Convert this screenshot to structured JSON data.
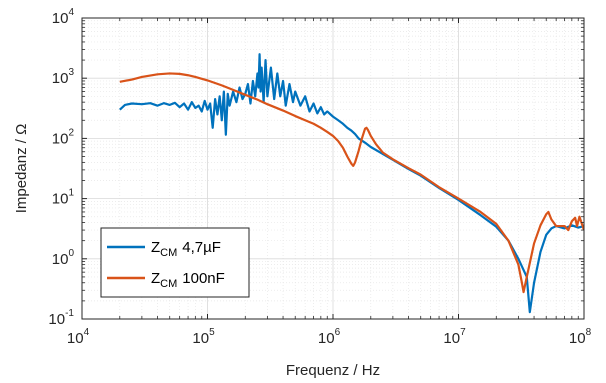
{
  "chart_data": {
    "type": "line",
    "title": "",
    "xlabel": "Frequenz / Hz",
    "ylabel": "Impedanz / Ω",
    "xscale": "log",
    "yscale": "log",
    "xlim": [
      10000,
      100000000
    ],
    "ylim": [
      0.1,
      10000
    ],
    "grid": "on (major + minor)",
    "legend_position": "bottom-left",
    "x_ticks": [
      {
        "base": "10",
        "exp": "4"
      },
      {
        "base": "10",
        "exp": "5"
      },
      {
        "base": "10",
        "exp": "6"
      },
      {
        "base": "10",
        "exp": "7"
      },
      {
        "base": "10",
        "exp": "8"
      }
    ],
    "y_ticks": [
      {
        "base": "10",
        "exp": "-1"
      },
      {
        "base": "10",
        "exp": "0"
      },
      {
        "base": "10",
        "exp": "1"
      },
      {
        "base": "10",
        "exp": "2"
      },
      {
        "base": "10",
        "exp": "3"
      },
      {
        "base": "10",
        "exp": "4"
      }
    ],
    "series": [
      {
        "name_main": "Z",
        "name_sub": "CM",
        "name_rest": "4,7µF",
        "color": "#0072BD",
        "points": [
          [
            20000,
            300
          ],
          [
            22000,
            360
          ],
          [
            25000,
            380
          ],
          [
            30000,
            370
          ],
          [
            35000,
            385
          ],
          [
            40000,
            350
          ],
          [
            45000,
            385
          ],
          [
            50000,
            360
          ],
          [
            55000,
            390
          ],
          [
            60000,
            330
          ],
          [
            65000,
            380
          ],
          [
            70000,
            300
          ],
          [
            75000,
            400
          ],
          [
            80000,
            320
          ],
          [
            85000,
            350
          ],
          [
            90000,
            280
          ],
          [
            95000,
            420
          ],
          [
            100000,
            300
          ],
          [
            105000,
            380
          ],
          [
            110000,
            150
          ],
          [
            115000,
            450
          ],
          [
            120000,
            250
          ],
          [
            125000,
            500
          ],
          [
            130000,
            200
          ],
          [
            135000,
            600
          ],
          [
            140000,
            115
          ],
          [
            145000,
            550
          ],
          [
            150000,
            350
          ],
          [
            160000,
            600
          ],
          [
            170000,
            400
          ],
          [
            180000,
            700
          ],
          [
            190000,
            450
          ],
          [
            200000,
            550
          ],
          [
            210000,
            800
          ],
          [
            220000,
            380
          ],
          [
            230000,
            900
          ],
          [
            240000,
            500
          ],
          [
            250000,
            1200
          ],
          [
            255000,
            700
          ],
          [
            260000,
            2500
          ],
          [
            265000,
            600
          ],
          [
            270000,
            1500
          ],
          [
            280000,
            400
          ],
          [
            290000,
            2000
          ],
          [
            300000,
            500
          ],
          [
            320000,
            1500
          ],
          [
            340000,
            450
          ],
          [
            360000,
            1200
          ],
          [
            380000,
            500
          ],
          [
            400000,
            900
          ],
          [
            420000,
            350
          ],
          [
            450000,
            800
          ],
          [
            480000,
            400
          ],
          [
            500000,
            600
          ],
          [
            550000,
            350
          ],
          [
            600000,
            500
          ],
          [
            650000,
            280
          ],
          [
            700000,
            380
          ],
          [
            750000,
            260
          ],
          [
            800000,
            330
          ],
          [
            850000,
            250
          ],
          [
            900000,
            280
          ],
          [
            1000000,
            230
          ],
          [
            1100000,
            200
          ],
          [
            1200000,
            175
          ],
          [
            1300000,
            150
          ],
          [
            1400000,
            135
          ],
          [
            1500000,
            118
          ],
          [
            1600000,
            100
          ],
          [
            1800000,
            85
          ],
          [
            2000000,
            72
          ],
          [
            2500000,
            55
          ],
          [
            3000000,
            44
          ],
          [
            4000000,
            31
          ],
          [
            5000000,
            24
          ],
          [
            7000000,
            15
          ],
          [
            10000000,
            9.5
          ],
          [
            15000000,
            5.3
          ],
          [
            20000000,
            3.4
          ],
          [
            25000000,
            2.0
          ],
          [
            30000000,
            1.0
          ],
          [
            35000000,
            0.5
          ],
          [
            37000000,
            0.13
          ],
          [
            40000000,
            0.4
          ],
          [
            45000000,
            1.3
          ],
          [
            50000000,
            2.5
          ],
          [
            55000000,
            3.2
          ],
          [
            60000000,
            3.5
          ],
          [
            70000000,
            3.2
          ],
          [
            80000000,
            3.6
          ],
          [
            90000000,
            3.3
          ],
          [
            100000000,
            3.5
          ]
        ]
      },
      {
        "name_main": "Z",
        "name_sub": "CM",
        "name_rest": "100nF",
        "color": "#D95319",
        "points": [
          [
            20000,
            870
          ],
          [
            25000,
            950
          ],
          [
            30000,
            1050
          ],
          [
            40000,
            1160
          ],
          [
            50000,
            1200
          ],
          [
            60000,
            1180
          ],
          [
            70000,
            1120
          ],
          [
            80000,
            1050
          ],
          [
            100000,
            920
          ],
          [
            130000,
            760
          ],
          [
            160000,
            640
          ],
          [
            200000,
            530
          ],
          [
            250000,
            440
          ],
          [
            300000,
            370
          ],
          [
            400000,
            290
          ],
          [
            500000,
            235
          ],
          [
            600000,
            200
          ],
          [
            700000,
            175
          ],
          [
            800000,
            150
          ],
          [
            900000,
            128
          ],
          [
            1000000,
            110
          ],
          [
            1100000,
            90
          ],
          [
            1200000,
            70
          ],
          [
            1300000,
            50
          ],
          [
            1400000,
            38
          ],
          [
            1450000,
            35
          ],
          [
            1500000,
            40
          ],
          [
            1600000,
            62
          ],
          [
            1700000,
            100
          ],
          [
            1800000,
            145
          ],
          [
            1850000,
            150
          ],
          [
            1900000,
            138
          ],
          [
            2000000,
            110
          ],
          [
            2200000,
            80
          ],
          [
            2500000,
            58
          ],
          [
            3000000,
            45
          ],
          [
            4000000,
            32
          ],
          [
            5000000,
            25
          ],
          [
            7000000,
            15.5
          ],
          [
            10000000,
            10
          ],
          [
            15000000,
            6
          ],
          [
            20000000,
            3.8
          ],
          [
            25000000,
            2.0
          ],
          [
            30000000,
            0.8
          ],
          [
            32000000,
            0.4
          ],
          [
            33000000,
            0.28
          ],
          [
            35000000,
            0.5
          ],
          [
            40000000,
            1.8
          ],
          [
            45000000,
            3.6
          ],
          [
            50000000,
            5.5
          ],
          [
            52000000,
            6.0
          ],
          [
            55000000,
            4.5
          ],
          [
            60000000,
            3.5
          ],
          [
            70000000,
            3.5
          ],
          [
            75000000,
            3.0
          ],
          [
            80000000,
            4.2
          ],
          [
            85000000,
            4.8
          ],
          [
            88000000,
            3.5
          ],
          [
            92000000,
            5.0
          ],
          [
            100000000,
            3.0
          ]
        ]
      }
    ]
  }
}
